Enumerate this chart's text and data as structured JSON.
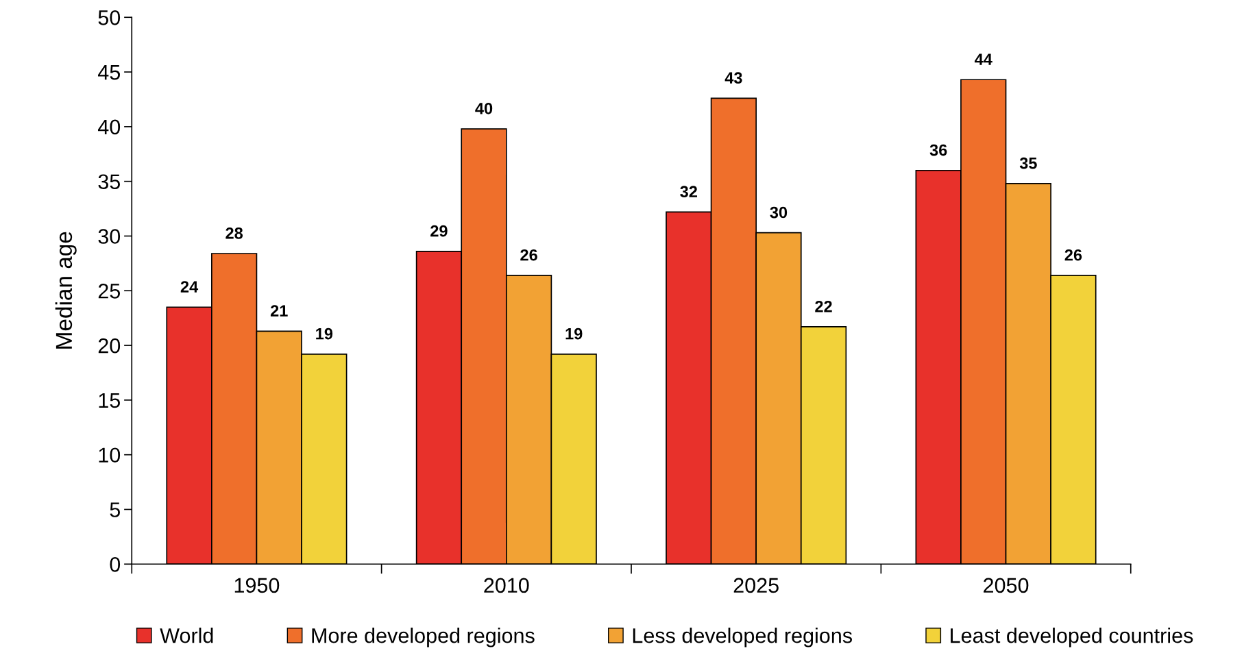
{
  "chart_data": {
    "type": "bar",
    "ylabel": "Median age",
    "categories": [
      "1950",
      "2010",
      "2025",
      "2050"
    ],
    "series": [
      {
        "name": "World",
        "color": "#e8312b",
        "values": [
          23.5,
          28.6,
          32.2,
          36.0
        ],
        "value_labels": [
          "24",
          "29",
          "32",
          "36"
        ]
      },
      {
        "name": "More developed regions",
        "color": "#ef6f2b",
        "values": [
          28.4,
          39.8,
          42.6,
          44.3
        ],
        "value_labels": [
          "28",
          "40",
          "43",
          "44"
        ]
      },
      {
        "name": "Less developed regions",
        "color": "#f2a234",
        "values": [
          21.3,
          26.4,
          30.3,
          34.8
        ],
        "value_labels": [
          "21",
          "26",
          "30",
          "35"
        ]
      },
      {
        "name": "Least developed countries",
        "color": "#f2d23a",
        "values": [
          19.2,
          19.2,
          21.7,
          26.4
        ],
        "value_labels": [
          "19",
          "19",
          "22",
          "26"
        ]
      }
    ],
    "ylim": [
      0,
      50
    ],
    "yticks": [
      0,
      5,
      10,
      15,
      20,
      25,
      30,
      35,
      40,
      45,
      50
    ],
    "grid": false,
    "legend": "bottom"
  }
}
